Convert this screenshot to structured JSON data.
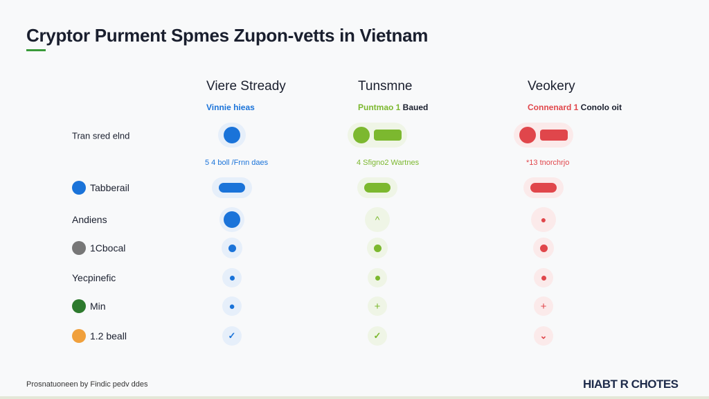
{
  "title": "Cryptor Purment Spmes Zupon-vetts in Vietnam",
  "colors": {
    "blue": "#1a73d9",
    "green": "#7cb82f",
    "red": "#e0464b",
    "accent_underline": "#3a9a3a"
  },
  "columns": [
    {
      "header": "Viere Stready",
      "subtitle": "Vinnie hieas",
      "subtitle_rest": "",
      "stat": "5 4 boll /Frnn daes",
      "color": "#1a73d9",
      "halo": "#e6effa"
    },
    {
      "header": "Tunsmne",
      "subtitle": "Puntmao 1",
      "subtitle_rest": " Baued",
      "stat": "4 Sfigno2 Wartnes",
      "color": "#7cb82f",
      "halo": "#eff5e6"
    },
    {
      "header": "Veokery",
      "subtitle": "Connenard 1",
      "subtitle_rest": " Conolo oit",
      "stat": "*13 tnorchrjo",
      "color": "#e0464b",
      "halo": "#fbeaea"
    }
  ],
  "first_row_label": "Tran sred elnd",
  "rows": [
    {
      "label": "Tabberail",
      "icon": "refresh-icon",
      "icon_color": "#1a73d9",
      "cell": "pill"
    },
    {
      "label": "Andiens",
      "icon": "",
      "icon_color": "",
      "cell": "big"
    },
    {
      "label": "1Cbocal",
      "icon": "qr-code-icon",
      "icon_color": "#777",
      "cell": "dot"
    },
    {
      "label": "Yecpinefic",
      "icon": "",
      "icon_color": "",
      "cell": "small"
    },
    {
      "label": "Min",
      "icon": "leaf-icon",
      "icon_color": "#2d7a2d",
      "cell": "plus"
    },
    {
      "label": "1.2 beall",
      "icon": "coin-icon",
      "icon_color": "#f0a03c",
      "cell": "check"
    }
  ],
  "footer": {
    "left": "Prosnatuoneen by Findic pedv ddes",
    "logo": "HIABT R CHOTES"
  }
}
